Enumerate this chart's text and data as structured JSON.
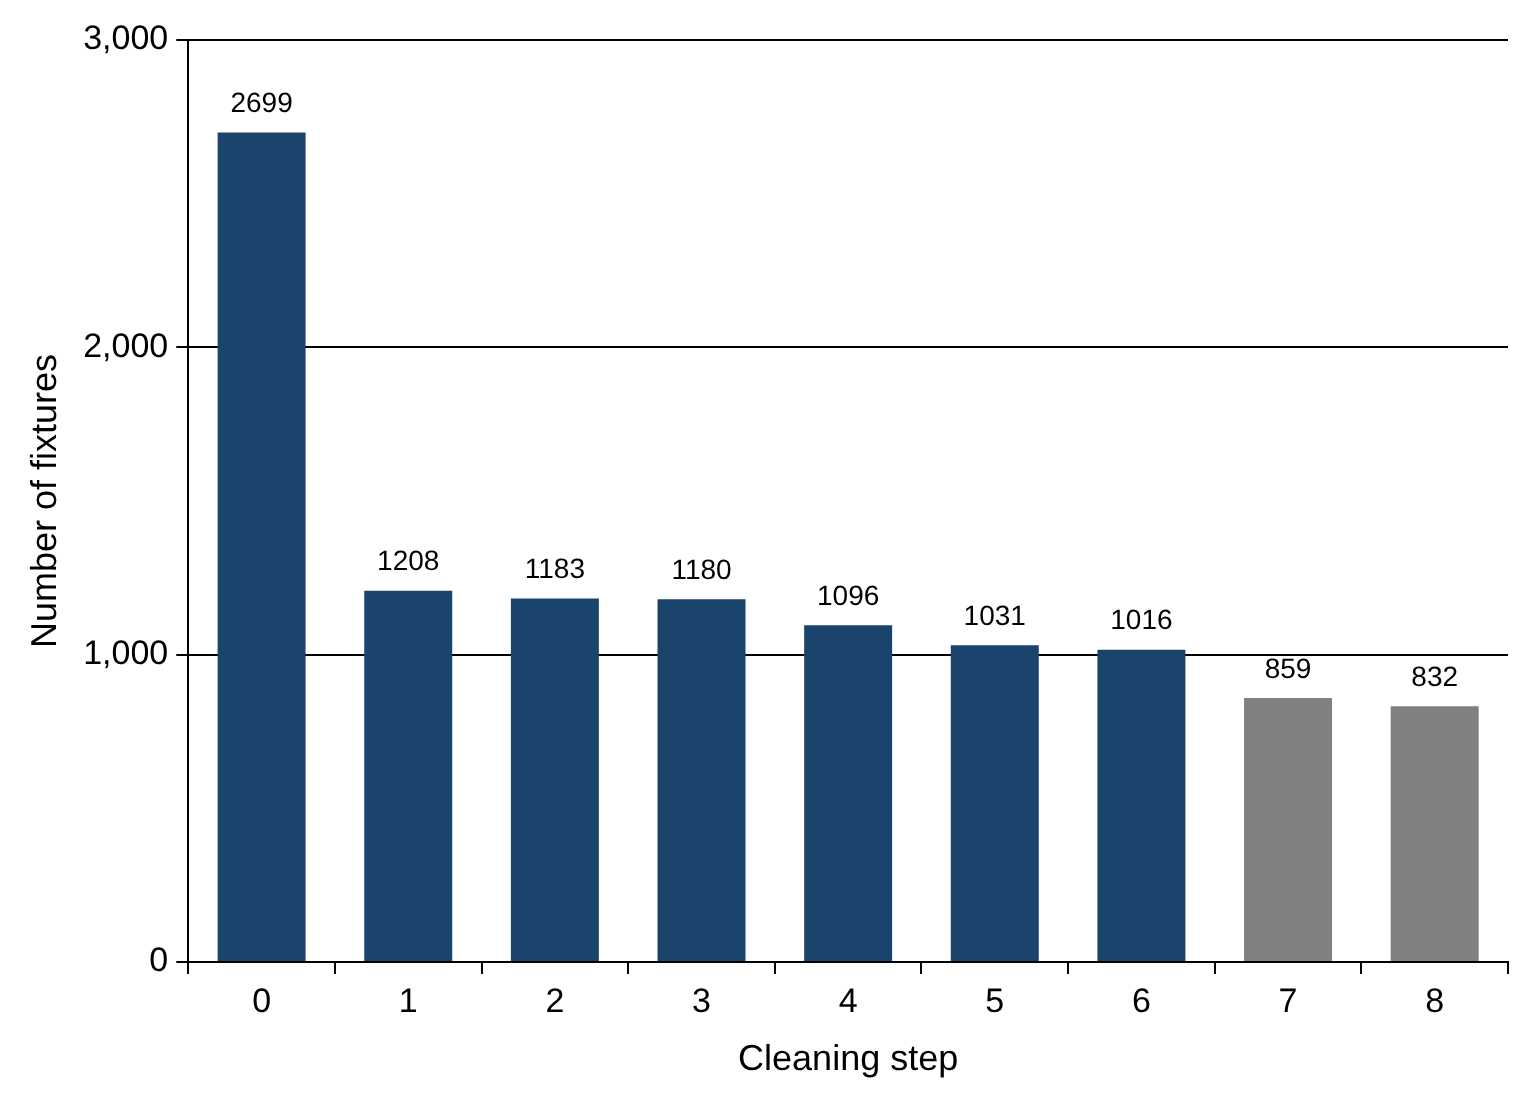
{
  "chart_data": {
    "type": "bar",
    "xlabel": "Cleaning step",
    "ylabel": "Number of fixtures",
    "categories": [
      "0",
      "1",
      "2",
      "3",
      "4",
      "5",
      "6",
      "7",
      "8"
    ],
    "values": [
      2699,
      1208,
      1183,
      1180,
      1096,
      1031,
      1016,
      859,
      832
    ],
    "colors": [
      "#1a446c",
      "#1a446c",
      "#1a446c",
      "#1a446c",
      "#1a446c",
      "#1a446c",
      "#1a446c",
      "#808080",
      "#808080"
    ],
    "ylim": [
      0,
      3000
    ],
    "yticks": [
      0,
      {
        "value": 1000,
        "label": "1,000"
      },
      {
        "value": 2000,
        "label": "2,000"
      },
      {
        "value": 3000,
        "label": "3,000"
      }
    ],
    "grid": "y",
    "data_labels": true
  }
}
